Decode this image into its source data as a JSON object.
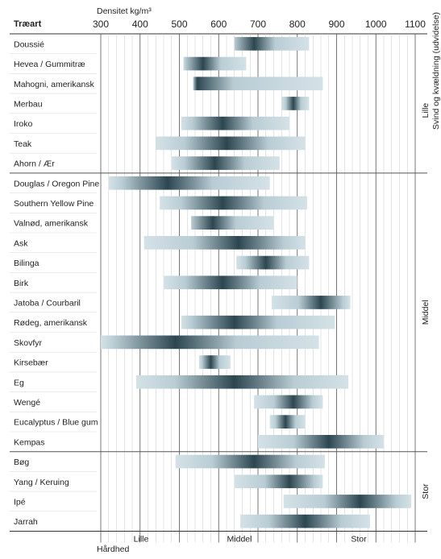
{
  "chart_data": {
    "type": "range_bar",
    "x_title": "Densitet kg/m³",
    "y_header": "Træart",
    "x_ticks": [
      300,
      400,
      500,
      600,
      700,
      800,
      900,
      1000,
      1100
    ],
    "xlim": [
      300,
      1100
    ],
    "grid": true,
    "species": [
      {
        "name": "Doussié",
        "min": 640,
        "max": 830,
        "peak": 690,
        "group": "Lille"
      },
      {
        "name": "Hevea / Gummitræ",
        "min": 510,
        "max": 670,
        "peak": 560,
        "group": "Lille"
      },
      {
        "name": "Mahogni, amerikansk",
        "min": 535,
        "max": 865,
        "peak": 545,
        "group": "Lille"
      },
      {
        "name": "Merbau",
        "min": 760,
        "max": 830,
        "peak": 790,
        "group": "Lille"
      },
      {
        "name": "Iroko",
        "min": 505,
        "max": 780,
        "peak": 610,
        "group": "Lille"
      },
      {
        "name": "Teak",
        "min": 440,
        "max": 820,
        "peak": 620,
        "group": "Lille"
      },
      {
        "name": "Ahorn / Ær",
        "min": 480,
        "max": 755,
        "peak": 590,
        "group": "Lille"
      },
      {
        "name": "Douglas / Oregon Pine",
        "min": 320,
        "max": 730,
        "peak": 470,
        "group": "Middel"
      },
      {
        "name": "Southern Yellow Pine",
        "min": 450,
        "max": 825,
        "peak": 610,
        "group": "Middel"
      },
      {
        "name": "Valnød, amerikansk",
        "min": 530,
        "max": 740,
        "peak": 585,
        "group": "Middel"
      },
      {
        "name": "Ask",
        "min": 410,
        "max": 820,
        "peak": 650,
        "group": "Middel"
      },
      {
        "name": "Bilinga",
        "min": 645,
        "max": 830,
        "peak": 720,
        "group": "Middel"
      },
      {
        "name": "Birk",
        "min": 460,
        "max": 800,
        "peak": 610,
        "group": "Middel"
      },
      {
        "name": "Jatoba / Courbaril",
        "min": 735,
        "max": 935,
        "peak": 860,
        "group": "Middel"
      },
      {
        "name": "Rødeg, amerikansk",
        "min": 505,
        "max": 895,
        "peak": 640,
        "group": "Middel"
      },
      {
        "name": "Skovfyr",
        "min": 300,
        "max": 855,
        "peak": 490,
        "group": "Middel"
      },
      {
        "name": "Kirsebær",
        "min": 550,
        "max": 630,
        "peak": 580,
        "group": "Middel"
      },
      {
        "name": "Eg",
        "min": 390,
        "max": 930,
        "peak": 640,
        "group": "Middel"
      },
      {
        "name": "Wengé",
        "min": 690,
        "max": 865,
        "peak": 790,
        "group": "Middel"
      },
      {
        "name": "Eucalyptus / Blue gum",
        "min": 730,
        "max": 820,
        "peak": 770,
        "group": "Middel"
      },
      {
        "name": "Kempas",
        "min": 700,
        "max": 1020,
        "peak": 880,
        "group": "Middel"
      },
      {
        "name": "Bøg",
        "min": 490,
        "max": 870,
        "peak": 690,
        "group": "Stor"
      },
      {
        "name": "Yang / Keruing",
        "min": 640,
        "max": 865,
        "peak": 780,
        "group": "Stor"
      },
      {
        "name": "Ipé",
        "min": 765,
        "max": 1090,
        "peak": 960,
        "group": "Stor"
      },
      {
        "name": "Jarrah",
        "min": 655,
        "max": 985,
        "peak": 820,
        "group": "Stor"
      }
    ],
    "right_axis": {
      "title": "Svind og kvældning (udvidelse)",
      "groups": [
        "Lille",
        "Middel",
        "Stor"
      ]
    },
    "bottom_axis": {
      "title": "Hårdhed",
      "labels": [
        "Lille",
        "Middel",
        "Stor"
      ]
    },
    "colors": {
      "bar_light": "#d4e2e7",
      "bar_dark": "#2c4650",
      "grid": "#c8c8c8",
      "grid_major": "#555555"
    }
  }
}
